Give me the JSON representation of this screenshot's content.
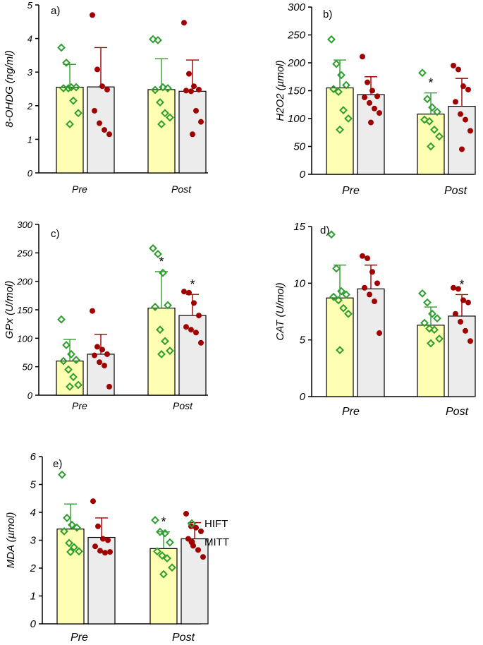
{
  "colors": {
    "hift_bar": "#ffffb3",
    "mitt_bar": "#ececec",
    "hift_marker": "#2e9e2e",
    "mitt_marker": "#a00000",
    "axis": "#000000"
  },
  "legend": {
    "items": [
      {
        "label": "HIFT",
        "marker": "diamond-open",
        "color": "#2e9e2e"
      },
      {
        "label": "MITT",
        "marker": "circle-filled",
        "color": "#a00000"
      }
    ]
  },
  "chart_data": [
    {
      "type": "bar",
      "panel_label": "a)",
      "ylabel": "8-OHDG (ng/ml)",
      "ylim": [
        0,
        5
      ],
      "yticks": [
        "0",
        "1",
        "2",
        "3",
        "4",
        "5"
      ],
      "categories": [
        "Pre",
        "Post"
      ],
      "series": [
        {
          "name": "HIFT",
          "means": [
            2.55,
            2.48
          ],
          "sd": [
            0.68,
            0.92
          ],
          "points": [
            [
              3.73,
              3.28,
              2.55,
              2.55,
              2.52,
              2.52,
              2.15,
              1.78,
              1.45
            ],
            [
              3.98,
              3.95,
              2.55,
              2.52,
              2.47,
              2.1,
              1.78,
              1.65,
              1.45
            ]
          ],
          "sig": [
            "",
            ""
          ]
        },
        {
          "name": "MITT",
          "means": [
            2.56,
            2.43
          ],
          "sd": [
            1.17,
            0.93
          ],
          "points": [
            [
              4.7,
              3.08,
              2.58,
              2.48,
              1.85,
              1.48,
              1.28,
              1.15
            ],
            [
              4.47,
              2.95,
              2.58,
              2.48,
              2.45,
              2.43,
              1.85,
              1.52,
              1.15
            ]
          ],
          "sig": [
            "",
            ""
          ]
        }
      ]
    },
    {
      "type": "bar",
      "panel_label": "b)",
      "ylabel": "H2O2 (µmol)",
      "ylim": [
        0,
        300
      ],
      "yticks": [
        "0",
        "50",
        "100",
        "150",
        "200",
        "250",
        "300"
      ],
      "categories": [
        "Pre",
        "Post"
      ],
      "series": [
        {
          "name": "HIFT",
          "means": [
            155,
            108
          ],
          "sd": [
            50,
            38
          ],
          "points": [
            [
              242,
              198,
              178,
              160,
              153,
              148,
              115,
              100,
              80
            ],
            [
              182,
              135,
              120,
              112,
              98,
              95,
              80,
              68,
              50
            ]
          ],
          "sig": [
            "",
            "*"
          ]
        },
        {
          "name": "MITT",
          "means": [
            143,
            122
          ],
          "sd": [
            32,
            50
          ],
          "points": [
            [
              211,
              165,
              150,
              140,
              138,
              128,
              118,
              110,
              93
            ],
            [
              195,
              188,
              158,
              152,
              130,
              108,
              98,
              78,
              45
            ]
          ],
          "sig": [
            "",
            ""
          ]
        }
      ]
    },
    {
      "type": "bar",
      "panel_label": "c)",
      "ylabel": "GPx (U/mol)",
      "ylim": [
        0,
        300
      ],
      "yticks": [
        "0",
        "50",
        "100",
        "150",
        "200",
        "250",
        "300"
      ],
      "categories": [
        "Pre",
        "Post"
      ],
      "series": [
        {
          "name": "HIFT",
          "means": [
            60,
            153
          ],
          "sd": [
            38,
            64
          ],
          "points": [
            [
              133,
              88,
              72,
              62,
              60,
              45,
              32,
              18,
              15
            ],
            [
              258,
              248,
              215,
              158,
              155,
              115,
              95,
              78,
              72
            ]
          ],
          "sig": [
            "",
            "*"
          ]
        },
        {
          "name": "MITT",
          "means": [
            72,
            140
          ],
          "sd": [
            35,
            37
          ],
          "points": [
            [
              148,
              85,
              80,
              72,
              70,
              58,
              52,
              15
            ],
            [
              182,
              180,
              162,
              140,
              120,
              115,
              110,
              92
            ]
          ],
          "sig": [
            "",
            "*"
          ]
        }
      ]
    },
    {
      "type": "bar",
      "panel_label": "d)",
      "ylabel": "CAT (U/mol)",
      "ylim": [
        0,
        15
      ],
      "yticks": [
        "0",
        "5",
        "10",
        "15"
      ],
      "categories": [
        "Pre",
        "Post"
      ],
      "series": [
        {
          "name": "HIFT",
          "means": [
            8.7,
            6.3
          ],
          "sd": [
            2.9,
            1.6
          ],
          "points": [
            [
              14.3,
              11.3,
              9.3,
              9.0,
              8.8,
              8.5,
              7.8,
              7.3,
              4.1
            ],
            [
              9.1,
              8.3,
              7.3,
              6.9,
              6.5,
              6.0,
              5.9,
              5.1,
              4.7
            ]
          ],
          "sig": [
            "",
            ""
          ]
        },
        {
          "name": "MITT",
          "means": [
            9.5,
            7.1
          ],
          "sd": [
            2.1,
            1.9
          ],
          "points": [
            [
              12.4,
              12.2,
              11.0,
              10.0,
              9.6,
              9.0,
              8.4,
              5.6
            ],
            [
              9.6,
              9.5,
              8.5,
              8.3,
              7.3,
              6.6,
              5.8,
              4.9
            ]
          ],
          "sig": [
            "",
            "*"
          ]
        }
      ]
    },
    {
      "type": "bar",
      "panel_label": "e)",
      "ylabel": "MDA (µmol)",
      "ylim": [
        0,
        6
      ],
      "yticks": [
        "0",
        "1",
        "2",
        "3",
        "4",
        "5",
        "6"
      ],
      "categories": [
        "Pre",
        "Post"
      ],
      "series": [
        {
          "name": "HIFT",
          "means": [
            3.4,
            2.7
          ],
          "sd": [
            0.9,
            0.6
          ],
          "points": [
            [
              5.35,
              3.8,
              3.55,
              3.45,
              3.32,
              2.9,
              2.75,
              2.6,
              2.58
            ],
            [
              3.72,
              3.3,
              3.25,
              2.92,
              2.6,
              2.45,
              2.35,
              2.02,
              1.78
            ]
          ],
          "sig": [
            "",
            "*"
          ]
        },
        {
          "name": "MITT",
          "means": [
            3.1,
            3.05
          ],
          "sd": [
            0.7,
            0.58
          ],
          "points": [
            [
              4.4,
              3.5,
              3.05,
              3.0,
              2.78,
              2.62,
              2.55,
              2.58
            ],
            [
              3.95,
              3.5,
              3.45,
              3.32,
              3.05,
              2.8,
              2.65,
              2.4
            ]
          ],
          "sig": [
            "",
            ""
          ]
        }
      ]
    }
  ]
}
